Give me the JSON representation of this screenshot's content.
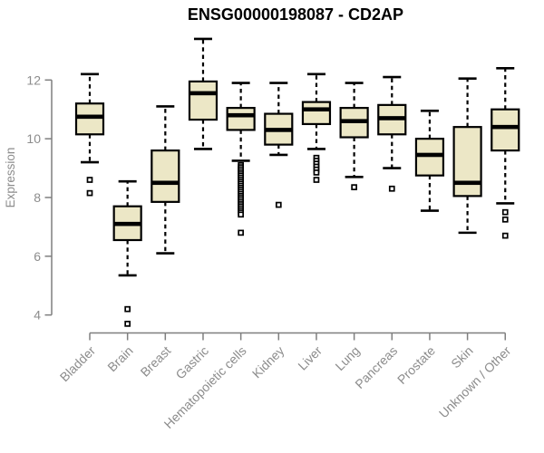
{
  "chart_data": {
    "type": "boxplot",
    "title": "ENSG00000198087 - CD2AP",
    "xlabel": "",
    "ylabel": "Expression",
    "yticks": [
      4,
      6,
      8,
      10,
      12
    ],
    "ylim": [
      3.4,
      13.6
    ],
    "grid": false,
    "legend": "none",
    "categories": [
      "Bladder",
      "Brain",
      "Breast",
      "Gastric",
      "Hematopoietic cells",
      "Kidney",
      "Liver",
      "Lung",
      "Pancreas",
      "Prostate",
      "Skin",
      "Unknown / Other"
    ],
    "series": [
      {
        "category": "Bladder",
        "whisker_low": 9.2,
        "q1": 10.15,
        "median": 10.75,
        "q3": 11.2,
        "whisker_high": 12.2,
        "outliers": [
          8.6,
          8.15
        ]
      },
      {
        "category": "Brain",
        "whisker_low": 5.35,
        "q1": 6.55,
        "median": 7.1,
        "q3": 7.7,
        "whisker_high": 8.55,
        "outliers": [
          4.2,
          3.7
        ]
      },
      {
        "category": "Breast",
        "whisker_low": 6.1,
        "q1": 7.85,
        "median": 8.5,
        "q3": 9.6,
        "whisker_high": 11.1,
        "outliers": []
      },
      {
        "category": "Gastric",
        "whisker_low": 9.65,
        "q1": 10.65,
        "median": 11.55,
        "q3": 11.95,
        "whisker_high": 13.4,
        "outliers": []
      },
      {
        "category": "Hematopoietic cells",
        "whisker_low": 9.25,
        "q1": 10.3,
        "median": 10.8,
        "q3": 11.05,
        "whisker_high": 11.9,
        "outliers": [
          9.1,
          9.03,
          8.96,
          8.89,
          8.82,
          8.75,
          8.68,
          8.61,
          8.54,
          8.47,
          8.4,
          8.33,
          8.26,
          8.19,
          8.12,
          8.05,
          7.98,
          7.91,
          7.84,
          7.77,
          7.7,
          7.63,
          7.56,
          7.49,
          7.42,
          6.8
        ]
      },
      {
        "category": "Kidney",
        "whisker_low": 9.45,
        "q1": 9.8,
        "median": 10.3,
        "q3": 10.85,
        "whisker_high": 11.9,
        "outliers": [
          7.75
        ]
      },
      {
        "category": "Liver",
        "whisker_low": 9.65,
        "q1": 10.5,
        "median": 11.0,
        "q3": 11.25,
        "whisker_high": 12.2,
        "outliers": [
          9.35,
          9.25,
          9.15,
          9.05,
          8.95,
          8.85,
          8.6
        ]
      },
      {
        "category": "Lung",
        "whisker_low": 8.7,
        "q1": 10.05,
        "median": 10.6,
        "q3": 11.05,
        "whisker_high": 11.9,
        "outliers": [
          8.35
        ]
      },
      {
        "category": "Pancreas",
        "whisker_low": 9.0,
        "q1": 10.15,
        "median": 10.7,
        "q3": 11.15,
        "whisker_high": 12.1,
        "outliers": [
          8.3
        ]
      },
      {
        "category": "Prostate",
        "whisker_low": 7.55,
        "q1": 8.75,
        "median": 9.45,
        "q3": 10.0,
        "whisker_high": 10.95,
        "outliers": []
      },
      {
        "category": "Skin",
        "whisker_low": 6.8,
        "q1": 8.05,
        "median": 8.5,
        "q3": 10.4,
        "whisker_high": 12.05,
        "outliers": []
      },
      {
        "category": "Unknown / Other",
        "whisker_low": 7.8,
        "q1": 9.6,
        "median": 10.4,
        "q3": 11.0,
        "whisker_high": 12.4,
        "outliers": [
          7.5,
          7.25,
          6.7
        ]
      }
    ],
    "colors": {
      "box_fill": "#ECE7C6",
      "box_border": "#000000",
      "median": "#000000",
      "whisker": "#000000",
      "outlier_fill": "#ffffff",
      "axis": "#7f7f7f",
      "tick_label": "#8c8c8c",
      "title": "#000000",
      "background": "#ffffff"
    }
  }
}
